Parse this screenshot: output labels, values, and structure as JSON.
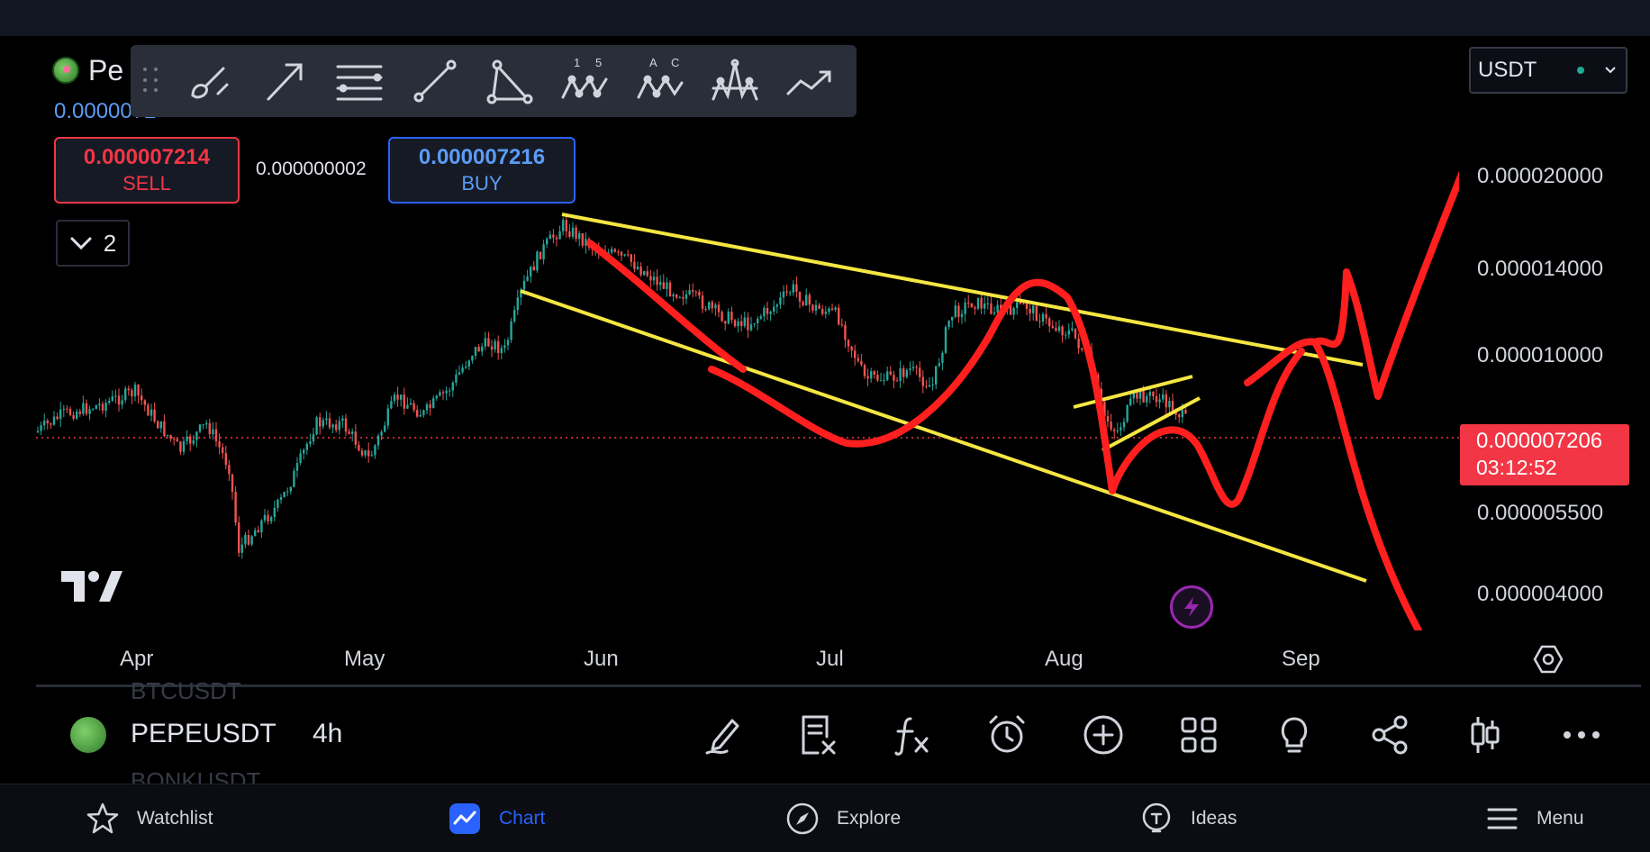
{
  "header": {
    "symbol_abbrev": "Pe",
    "price_change_partial": "0.0000072 "
  },
  "trade": {
    "sell_price": "0.000007214",
    "sell_label": "SELL",
    "spread": "0.000000002",
    "buy_price": "0.000007216",
    "buy_label": "BUY",
    "collapsed_count": "2"
  },
  "currency": {
    "selected": "USDT",
    "status_color": "#22ab94"
  },
  "price_axis": {
    "labels": [
      "0.000020000",
      "0.000014000",
      "0.000010000",
      "0.000005500",
      "0.000004000"
    ],
    "last_price": "0.000007206",
    "countdown": "03:12:52"
  },
  "time_axis": {
    "months": [
      "Apr",
      "May",
      "Jun",
      "Jul",
      "Aug",
      "Sep"
    ]
  },
  "symbol_bar": {
    "prev_symbol": "BTCUSDT",
    "symbol": "PEPEUSDT",
    "timeframe": "4h",
    "next_symbol": "BONKUSDT"
  },
  "drawing_tools": [
    "brush-tool",
    "arrow-tool",
    "parallel-channel-tool",
    "trendline-tool",
    "triangle-pattern-tool",
    "elliott-wave-tool",
    "abcd-pattern-tool",
    "head-shoulders-tool",
    "path-tool"
  ],
  "bottom_nav": {
    "watchlist": "Watchlist",
    "chart": "Chart",
    "explore": "Explore",
    "ideas": "Ideas",
    "menu": "Menu"
  },
  "colors": {
    "up": "#26a69a",
    "down": "#ef5350",
    "annotation_yellow": "#f5e642",
    "annotation_red": "#ff1f1f",
    "accent": "#2962ff"
  }
}
